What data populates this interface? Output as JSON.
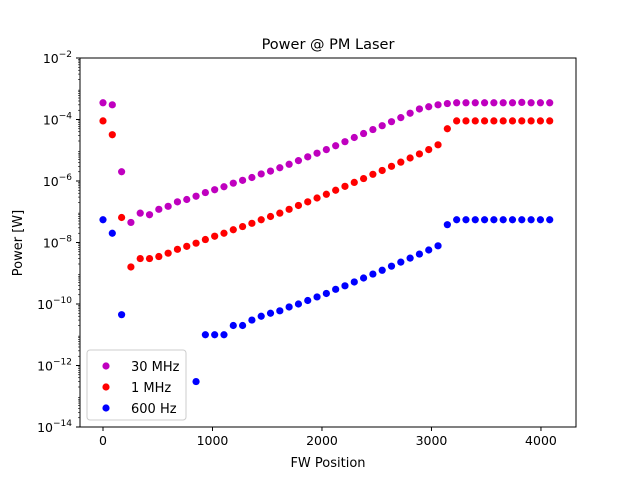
{
  "chart_data": {
    "type": "scatter",
    "title": "Power @ PM Laser",
    "xlabel": "FW Position",
    "ylabel": "Power [W]",
    "xlim": [
      -210,
      4320
    ],
    "ylim_log10": [
      -14,
      -2
    ],
    "yscale": "log",
    "x_ticks": [
      0,
      1000,
      2000,
      3000,
      4000
    ],
    "x_tick_labels": [
      "0",
      "1000",
      "2000",
      "3000",
      "4000"
    ],
    "y_ticks_log10": [
      -14,
      -12,
      -10,
      -8,
      -6,
      -4,
      -2
    ],
    "y_tick_base": "10",
    "y_tick_exponents": [
      "−14",
      "−12",
      "−10",
      "−8",
      "−6",
      "−4",
      "−2"
    ],
    "grid": false,
    "legend_position": "lower-left",
    "series": [
      {
        "name": "30 MHz",
        "color": "#bf00bf",
        "points": [
          [
            0,
            0.00035
          ],
          [
            85,
            0.0003
          ],
          [
            170,
            2e-06
          ],
          [
            255,
            4.5e-08
          ],
          [
            340,
            9e-08
          ],
          [
            425,
            8e-08
          ],
          [
            510,
            1.2e-07
          ],
          [
            595,
            1.5e-07
          ],
          [
            680,
            2.1e-07
          ],
          [
            765,
            2.5e-07
          ],
          [
            850,
            3.2e-07
          ],
          [
            935,
            4.2e-07
          ],
          [
            1020,
            5.2e-07
          ],
          [
            1105,
            6.5e-07
          ],
          [
            1190,
            8.5e-07
          ],
          [
            1275,
            1.05e-06
          ],
          [
            1360,
            1.3e-06
          ],
          [
            1445,
            1.7e-06
          ],
          [
            1530,
            2.1e-06
          ],
          [
            1615,
            2.7e-06
          ],
          [
            1700,
            3.5e-06
          ],
          [
            1785,
            4.6e-06
          ],
          [
            1870,
            6.1e-06
          ],
          [
            1955,
            8e-06
          ],
          [
            2040,
            1.05e-05
          ],
          [
            2125,
            1.4e-05
          ],
          [
            2210,
            1.9e-05
          ],
          [
            2295,
            2.6e-05
          ],
          [
            2380,
            3.5e-05
          ],
          [
            2465,
            4.7e-05
          ],
          [
            2550,
            6.3e-05
          ],
          [
            2635,
            8.5e-05
          ],
          [
            2720,
            0.000115
          ],
          [
            2805,
            0.00016
          ],
          [
            2890,
            0.00022
          ],
          [
            2975,
            0.00026
          ],
          [
            3060,
            0.0003
          ],
          [
            3145,
            0.00033
          ],
          [
            3230,
            0.00035
          ],
          [
            3315,
            0.00035
          ],
          [
            3400,
            0.00035
          ],
          [
            3485,
            0.00035
          ],
          [
            3570,
            0.00035
          ],
          [
            3655,
            0.00035
          ],
          [
            3740,
            0.00035
          ],
          [
            3825,
            0.00036
          ],
          [
            3910,
            0.00035
          ],
          [
            3995,
            0.00035
          ],
          [
            4080,
            0.00035
          ]
        ]
      },
      {
        "name": "1 MHz",
        "color": "#ff0000",
        "points": [
          [
            0,
            9e-05
          ],
          [
            85,
            3.2e-05
          ],
          [
            170,
            6.5e-08
          ],
          [
            255,
            1.6e-09
          ],
          [
            340,
            3e-09
          ],
          [
            425,
            3e-09
          ],
          [
            510,
            3.5e-09
          ],
          [
            595,
            4.5e-09
          ],
          [
            680,
            6e-09
          ],
          [
            765,
            7.5e-09
          ],
          [
            850,
            9.5e-09
          ],
          [
            935,
            1.25e-08
          ],
          [
            1020,
            1.6e-08
          ],
          [
            1105,
            2e-08
          ],
          [
            1190,
            2.6e-08
          ],
          [
            1275,
            3.3e-08
          ],
          [
            1360,
            4.2e-08
          ],
          [
            1445,
            5.5e-08
          ],
          [
            1530,
            7e-08
          ],
          [
            1615,
            9e-08
          ],
          [
            1700,
            1.2e-07
          ],
          [
            1785,
            1.6e-07
          ],
          [
            1870,
            2.1e-07
          ],
          [
            1955,
            2.8e-07
          ],
          [
            2040,
            3.7e-07
          ],
          [
            2125,
            5e-07
          ],
          [
            2210,
            6.7e-07
          ],
          [
            2295,
            9e-07
          ],
          [
            2380,
            1.2e-06
          ],
          [
            2465,
            1.65e-06
          ],
          [
            2550,
            2.2e-06
          ],
          [
            2635,
            3e-06
          ],
          [
            2720,
            4.1e-06
          ],
          [
            2805,
            5.6e-06
          ],
          [
            2890,
            7.6e-06
          ],
          [
            2975,
            1.05e-05
          ],
          [
            3060,
            1.5e-05
          ],
          [
            3145,
            5e-05
          ],
          [
            3230,
            9e-05
          ],
          [
            3315,
            9e-05
          ],
          [
            3400,
            9e-05
          ],
          [
            3485,
            9e-05
          ],
          [
            3570,
            9e-05
          ],
          [
            3655,
            9e-05
          ],
          [
            3740,
            9e-05
          ],
          [
            3825,
            9e-05
          ],
          [
            3910,
            9e-05
          ],
          [
            3995,
            9e-05
          ],
          [
            4080,
            9e-05
          ]
        ]
      },
      {
        "name": "600 Hz",
        "color": "#0000ff",
        "points": [
          [
            0,
            5.5e-08
          ],
          [
            85,
            2e-08
          ],
          [
            170,
            4.5e-11
          ],
          [
            850,
            3e-13
          ],
          [
            935,
            1e-11
          ],
          [
            1020,
            1e-11
          ],
          [
            1105,
            1e-11
          ],
          [
            1190,
            2e-11
          ],
          [
            1275,
            2e-11
          ],
          [
            1360,
            3e-11
          ],
          [
            1445,
            4e-11
          ],
          [
            1530,
            5e-11
          ],
          [
            1615,
            6e-11
          ],
          [
            1700,
            8e-11
          ],
          [
            1785,
            1e-10
          ],
          [
            1870,
            1.3e-10
          ],
          [
            1955,
            1.7e-10
          ],
          [
            2040,
            2.2e-10
          ],
          [
            2125,
            3e-10
          ],
          [
            2210,
            3.9e-10
          ],
          [
            2295,
            5.2e-10
          ],
          [
            2380,
            7e-10
          ],
          [
            2465,
            9.4e-10
          ],
          [
            2550,
            1.25e-09
          ],
          [
            2635,
            1.7e-09
          ],
          [
            2720,
            2.3e-09
          ],
          [
            2805,
            3.1e-09
          ],
          [
            2890,
            4.2e-09
          ],
          [
            2975,
            5.7e-09
          ],
          [
            3060,
            7.8e-09
          ],
          [
            3145,
            3.8e-08
          ],
          [
            3230,
            5.5e-08
          ],
          [
            3315,
            5.5e-08
          ],
          [
            3400,
            5.5e-08
          ],
          [
            3485,
            5.5e-08
          ],
          [
            3570,
            5.5e-08
          ],
          [
            3655,
            5.5e-08
          ],
          [
            3740,
            5.5e-08
          ],
          [
            3825,
            5.5e-08
          ],
          [
            3910,
            5.5e-08
          ],
          [
            3995,
            5.5e-08
          ],
          [
            4080,
            5.5e-08
          ]
        ]
      }
    ]
  }
}
